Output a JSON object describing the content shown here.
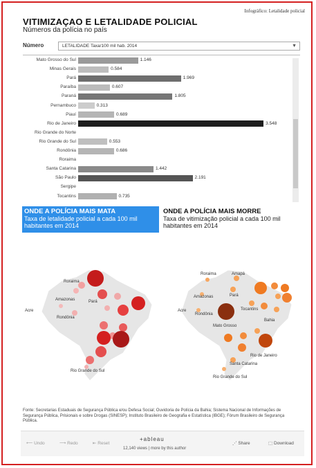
{
  "header": {
    "breadcrumb": "Infográfico: Letalidade policial",
    "title": "VITIMIZAÇAO E LETALIDADE POLICIAL",
    "subtitle": "Números da polícia no país"
  },
  "filter": {
    "label": "Número",
    "selected": "LETALIDADE Taxa/100 mil hab. 2014"
  },
  "chart_data": {
    "type": "bar",
    "categories": [
      "Mato Grosso do Sul",
      "Minas Gerais",
      "Pará",
      "Paraíba",
      "Paraná",
      "Pernambuco",
      "Piauí",
      "Rio de Janeiro",
      "Rio Grande do Norte",
      "Rio Grande do Sul",
      "Rondônia",
      "Roraima",
      "Santa Catarina",
      "São Paulo",
      "Sergipe",
      "Tocantins"
    ],
    "values": [
      1.146,
      0.584,
      1.969,
      0.607,
      1.805,
      0.313,
      0.689,
      3.548,
      null,
      0.553,
      0.686,
      null,
      1.442,
      2.191,
      null,
      0.735
    ],
    "value_labels": [
      "1.146",
      "0.584",
      "1.969",
      "0.607",
      "1.805",
      "0.313",
      "0.689",
      "3.548",
      "",
      "0.553",
      "0.686",
      "",
      "1.442",
      "2.191",
      "",
      "0.735"
    ],
    "colors": [
      "#9a9a9a",
      "#bdbdbd",
      "#6e6e6e",
      "#bbbbbb",
      "#767676",
      "#cccccc",
      "#b5b5b5",
      "#1e1e1e",
      "#ffffff",
      "#bfbfbf",
      "#b5b5b5",
      "#ffffff",
      "#8a8a8a",
      "#555555",
      "#ffffff",
      "#b0b0b0"
    ],
    "xlim": [
      0,
      3.6
    ]
  },
  "sections": {
    "mata": {
      "heading": "ONDE A POLÍCIA MAIS MATA",
      "description": "Taxa de letalidade policial a cada 100 mil habitantes em 2014"
    },
    "morre": {
      "heading": "ONDE A POLÍCIA MAIS MORRE",
      "description": "Taxa de vitimização policial a cada 100 mil habitantes em 2014"
    }
  },
  "map_left": {
    "labels": [
      "Roraima",
      "Amazonas",
      "Pará",
      "Acre",
      "Rondônia",
      "Rio Grande do Sul"
    ]
  },
  "map_right": {
    "labels": [
      "Roraima",
      "Amapá",
      "Amazonas",
      "Pará",
      "Acre",
      "Rondônia",
      "Tocantins",
      "Bahia",
      "Mato Grosso",
      "Rio de Janeiro",
      "Santa Catarina",
      "Rio Grande do Sul"
    ]
  },
  "source": "Fonte: Secretarias Estaduais de Segurança Pública e/ou Defesa Social; Ouvidoria de Polícia da Bahia; Sistema Nacional de Informações de Segurança Pública, Prisionais e sobre Drogas (SINESP); Instituto Brasileiro de Geografia e Estatística (IBGE); Fórum Brasileiro de Segurança Pública.",
  "footer": {
    "undo": "Undo",
    "redo": "Redo",
    "reset": "Reset",
    "logo": "+ableau",
    "views": "12,140 views | more by this author",
    "share": "Share",
    "download": "Download"
  },
  "colors": {
    "accent_blue": "#2f8fe8",
    "frame_red": "#d42020",
    "map_red": "#d92b2b",
    "map_orange": "#f07a28"
  }
}
